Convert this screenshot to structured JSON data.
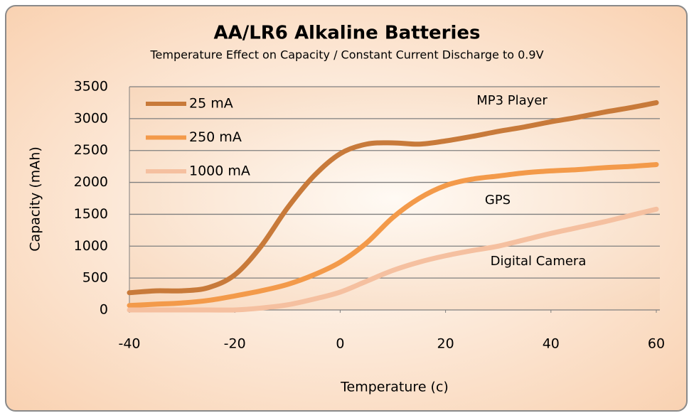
{
  "chart_data": {
    "type": "line",
    "title": "AA/LR6 Alkaline Batteries",
    "subtitle": "Temperature Effect on Capacity / Constant Current Discharge to 0.9V",
    "x_label": "Temperature (c)",
    "y_label": "Capacity (mAh)",
    "x": [
      -40,
      -35,
      -30,
      -25,
      -20,
      -15,
      -10,
      -5,
      0,
      5,
      10,
      15,
      20,
      25,
      30,
      35,
      40,
      45,
      50,
      55,
      60
    ],
    "series": [
      {
        "name": "25 mA",
        "color": "#c87a3a",
        "values": [
          270,
          300,
          300,
          350,
          550,
          1000,
          1600,
          2100,
          2450,
          2600,
          2620,
          2600,
          2650,
          2720,
          2800,
          2870,
          2950,
          3020,
          3100,
          3170,
          3250
        ]
      },
      {
        "name": "250 mA",
        "color": "#f39a4a",
        "values": [
          70,
          90,
          110,
          150,
          220,
          300,
          400,
          550,
          750,
          1050,
          1450,
          1750,
          1950,
          2050,
          2100,
          2150,
          2180,
          2200,
          2230,
          2250,
          2280
        ]
      },
      {
        "name": "1000 mA",
        "color": "#f5c0a0",
        "values": [
          0,
          0,
          0,
          0,
          0,
          30,
          80,
          170,
          280,
          450,
          620,
          750,
          850,
          930,
          1000,
          1100,
          1200,
          1290,
          1380,
          1480,
          1580
        ]
      }
    ],
    "annotations": [
      "MP3 Player",
      "GPS",
      "Digital Camera"
    ],
    "xlim": [
      -40,
      60
    ],
    "xticks": [
      -40,
      -20,
      0,
      20,
      40,
      60
    ],
    "ylim": [
      0,
      3500
    ],
    "yticks": [
      0,
      500,
      1000,
      1500,
      2000,
      2500,
      3000,
      3500
    ],
    "grid": true,
    "legend": "upper-left"
  }
}
